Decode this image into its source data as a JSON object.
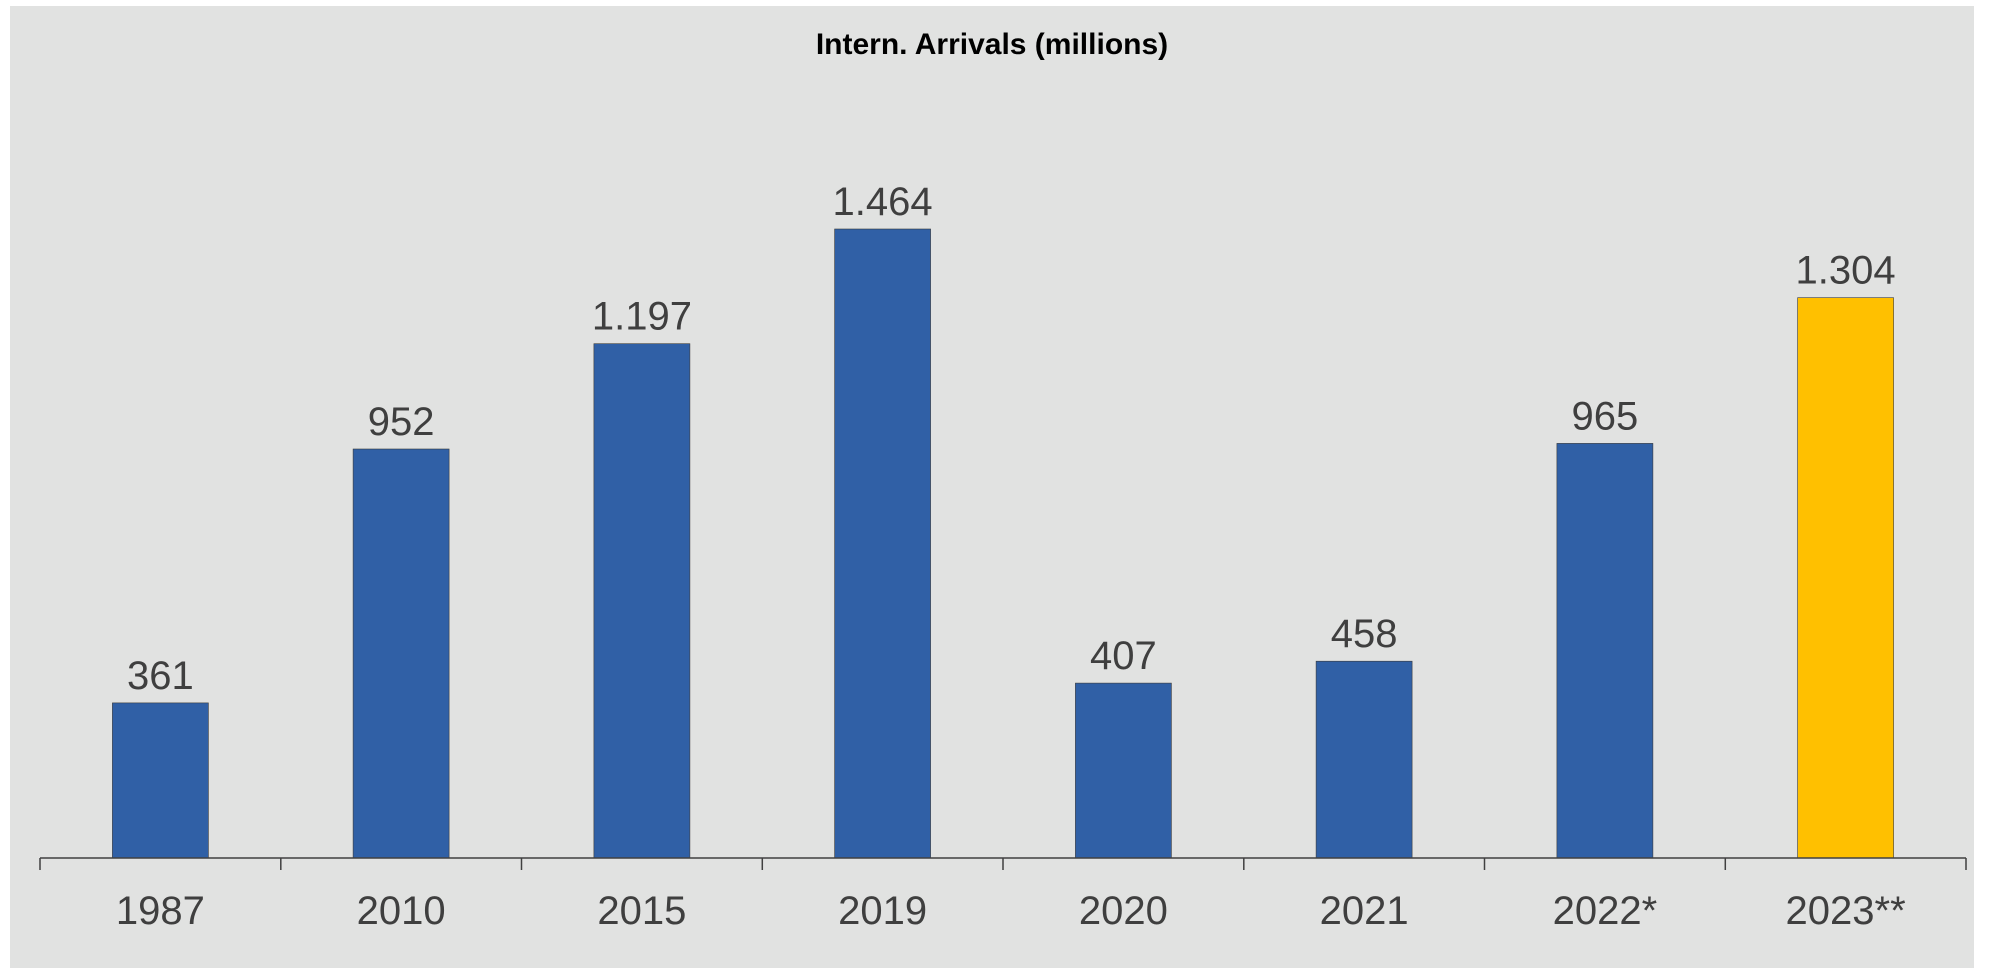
{
  "chart_data": {
    "type": "bar",
    "title": "Intern. Arrivals (millions)",
    "xlabel": "",
    "ylabel": "",
    "categories": [
      "1987",
      "2010",
      "2015",
      "2019",
      "2020",
      "2021",
      "2022*",
      "2023**"
    ],
    "values": [
      361,
      952,
      1197,
      1464,
      407,
      458,
      965,
      1304
    ],
    "value_labels": [
      "361",
      "952",
      "1.197",
      "1.464",
      "407",
      "458",
      "965",
      "1.304"
    ],
    "bar_colors": [
      "#3060a6",
      "#3060a6",
      "#3060a6",
      "#3060a6",
      "#3060a6",
      "#3060a6",
      "#3060a6",
      "#ffc000"
    ],
    "ylim": [
      0,
      1464
    ],
    "grid": false,
    "legend": "none"
  },
  "colors": {
    "background": "#e1e2e1",
    "primary_bar": "#3060a6",
    "highlight_bar": "#ffc000",
    "axis": "#404040",
    "label_text": "#3f3f3f"
  }
}
